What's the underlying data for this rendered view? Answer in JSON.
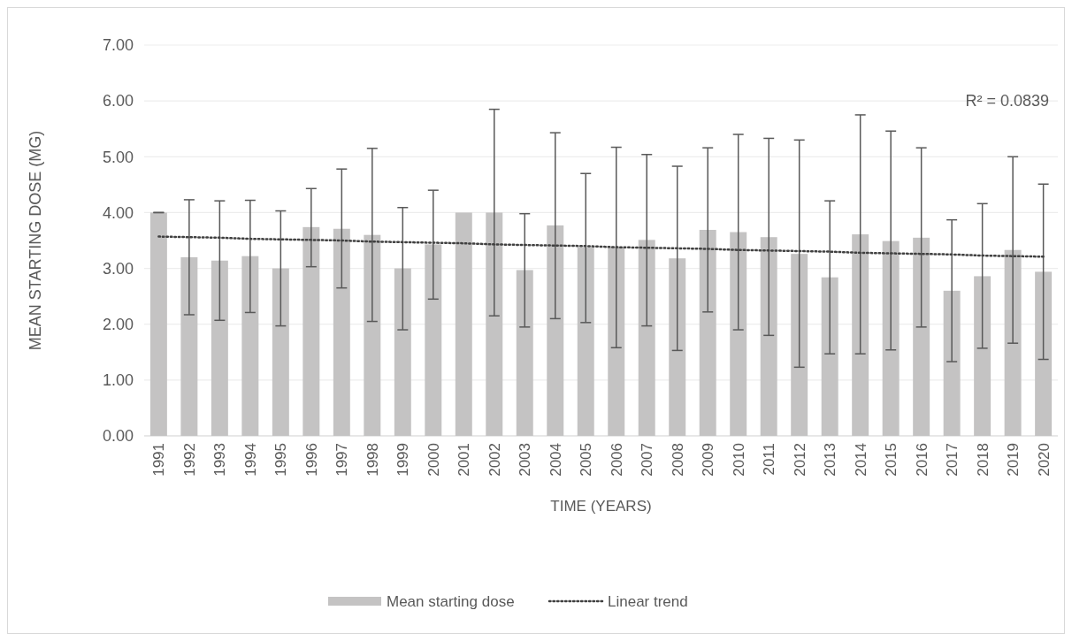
{
  "chart_data": {
    "type": "bar",
    "xlabel": "TIME (YEARS)",
    "ylabel": "MEAN STARTING DOSE (MG)",
    "categories": [
      "1991",
      "1992",
      "1993",
      "1994",
      "1995",
      "1996",
      "1997",
      "1998",
      "1999",
      "2000",
      "2001",
      "2002",
      "2003",
      "2004",
      "2005",
      "2006",
      "2007",
      "2008",
      "2009",
      "2010",
      "2011",
      "2012",
      "2013",
      "2014",
      "2015",
      "2016",
      "2017",
      "2018",
      "2019",
      "2020"
    ],
    "series": [
      {
        "name": "Mean starting dose",
        "color": "#c4c3c3",
        "values": [
          4.0,
          3.2,
          3.14,
          3.22,
          3.0,
          3.74,
          3.71,
          3.6,
          3.0,
          3.43,
          4.0,
          4.0,
          2.97,
          3.77,
          3.38,
          3.38,
          3.51,
          3.18,
          3.69,
          3.65,
          3.56,
          3.26,
          2.84,
          3.61,
          3.49,
          3.55,
          2.6,
          2.86,
          3.33,
          2.94
        ],
        "errors": [
          0,
          [
            2.17,
            4.23
          ],
          [
            2.07,
            4.21
          ],
          [
            2.21,
            4.22
          ],
          [
            1.97,
            4.03
          ],
          [
            3.03,
            4.43
          ],
          [
            2.65,
            4.78
          ],
          [
            2.05,
            5.15
          ],
          [
            1.9,
            4.09
          ],
          [
            2.45,
            4.4
          ],
          null,
          [
            2.15,
            5.85
          ],
          [
            1.95,
            3.98
          ],
          [
            2.1,
            5.43
          ],
          [
            2.03,
            4.7
          ],
          [
            1.58,
            5.17
          ],
          [
            1.97,
            5.04
          ],
          [
            1.53,
            4.83
          ],
          [
            2.22,
            5.16
          ],
          [
            1.9,
            5.4
          ],
          [
            1.8,
            5.33
          ],
          [
            1.23,
            5.3
          ],
          [
            1.47,
            4.21
          ],
          [
            1.47,
            5.75
          ],
          [
            1.54,
            5.46
          ],
          [
            1.95,
            5.16
          ],
          [
            1.33,
            3.87
          ],
          [
            1.57,
            4.16
          ],
          [
            1.66,
            5.0
          ],
          [
            1.37,
            4.51
          ]
        ]
      },
      {
        "name": "Linear trend",
        "type": "line",
        "color": "#404040",
        "line_style": "dotted",
        "values": [
          3.57,
          3.56,
          3.55,
          3.53,
          3.52,
          3.51,
          3.5,
          3.48,
          3.47,
          3.46,
          3.45,
          3.43,
          3.42,
          3.41,
          3.4,
          3.38,
          3.37,
          3.36,
          3.35,
          3.33,
          3.32,
          3.31,
          3.3,
          3.28,
          3.27,
          3.26,
          3.25,
          3.23,
          3.22,
          3.21
        ]
      }
    ],
    "ylim": [
      0,
      7
    ],
    "yticks": [
      {
        "value": 0,
        "label": "0.00"
      },
      {
        "value": 1,
        "label": "1.00"
      },
      {
        "value": 2,
        "label": "2.00"
      },
      {
        "value": 3,
        "label": "3.00"
      },
      {
        "value": 4,
        "label": "4.00"
      },
      {
        "value": 5,
        "label": "5.00"
      },
      {
        "value": 6,
        "label": "6.00"
      },
      {
        "value": 7,
        "label": "7.00"
      }
    ],
    "grid": "y",
    "legend": "bottom",
    "annotations": [
      "R² = 0.0839"
    ]
  }
}
